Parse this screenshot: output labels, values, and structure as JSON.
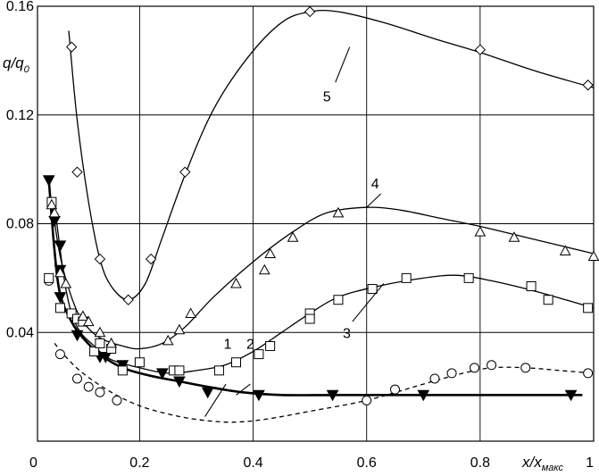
{
  "chart_data": {
    "type": "line",
    "title": "",
    "xlabel": {
      "base": "x/x",
      "sub": "макс"
    },
    "ylabel": {
      "base": "q/q",
      "sub": "0"
    },
    "xlim": [
      0.02,
      1.0
    ],
    "ylim": [
      0.0,
      0.16
    ],
    "grid": true,
    "x_ticks": [
      {
        "value": 0.2,
        "label": "0.2"
      },
      {
        "value": 0.4,
        "label": "0.4"
      },
      {
        "value": 0.6,
        "label": "0.6"
      },
      {
        "value": 0.8,
        "label": "0.8"
      },
      {
        "value": 1.0,
        "label": "1"
      }
    ],
    "y_ticks": [
      {
        "value": 0.04,
        "label": "0.04"
      },
      {
        "value": 0.08,
        "label": "0.08"
      },
      {
        "value": 0.12,
        "label": "0.12"
      },
      {
        "value": 0.16,
        "label": "0.16"
      }
    ],
    "origin_label": "0",
    "series": [
      {
        "label": "1",
        "marker": "circle",
        "line": "dashed",
        "label_pos": [
          0.355,
          0.036
        ],
        "leader": [
          [
            0.352,
            0.021
          ],
          [
            0.315,
            0.009
          ]
        ],
        "curve": [
          [
            0.05,
            0.036
          ],
          [
            0.07,
            0.031
          ],
          [
            0.1,
            0.025
          ],
          [
            0.15,
            0.018
          ],
          [
            0.2,
            0.013
          ],
          [
            0.25,
            0.01
          ],
          [
            0.3,
            0.008
          ],
          [
            0.36,
            0.007
          ],
          [
            0.42,
            0.008
          ],
          [
            0.5,
            0.011
          ],
          [
            0.6,
            0.015
          ],
          [
            0.7,
            0.021
          ],
          [
            0.77,
            0.025
          ],
          [
            0.82,
            0.027
          ],
          [
            0.88,
            0.027
          ],
          [
            0.94,
            0.026
          ],
          [
            1.0,
            0.025
          ]
        ],
        "points": [
          [
            0.04,
            0.059
          ],
          [
            0.06,
            0.032
          ],
          [
            0.09,
            0.023
          ],
          [
            0.11,
            0.02
          ],
          [
            0.13,
            0.018
          ],
          [
            0.16,
            0.015
          ],
          [
            0.6,
            0.015
          ],
          [
            0.65,
            0.019
          ],
          [
            0.72,
            0.023
          ],
          [
            0.75,
            0.025
          ],
          [
            0.79,
            0.027
          ],
          [
            0.82,
            0.028
          ],
          [
            0.88,
            0.027
          ],
          [
            0.99,
            0.025
          ]
        ]
      },
      {
        "label": "2",
        "marker": "triangle-down-filled",
        "line": "solid-thick",
        "label_pos": [
          0.395,
          0.036
        ],
        "leader": [
          [
            0.395,
            0.021
          ],
          [
            0.37,
            0.017
          ]
        ],
        "curve": [
          [
            0.04,
            0.096
          ],
          [
            0.05,
            0.07
          ],
          [
            0.06,
            0.054
          ],
          [
            0.08,
            0.044
          ],
          [
            0.1,
            0.038
          ],
          [
            0.13,
            0.032
          ],
          [
            0.17,
            0.027
          ],
          [
            0.22,
            0.024
          ],
          [
            0.27,
            0.022
          ],
          [
            0.32,
            0.02
          ],
          [
            0.38,
            0.018
          ],
          [
            0.45,
            0.017
          ],
          [
            0.55,
            0.017
          ],
          [
            0.7,
            0.017
          ],
          [
            0.85,
            0.017
          ],
          [
            0.98,
            0.017
          ]
        ],
        "points": [
          [
            0.04,
            0.096
          ],
          [
            0.05,
            0.081
          ],
          [
            0.06,
            0.072
          ],
          [
            0.06,
            0.063
          ],
          [
            0.06,
            0.053
          ],
          [
            0.09,
            0.039
          ],
          [
            0.13,
            0.031
          ],
          [
            0.14,
            0.031
          ],
          [
            0.17,
            0.028
          ],
          [
            0.24,
            0.025
          ],
          [
            0.27,
            0.022
          ],
          [
            0.32,
            0.018
          ],
          [
            0.41,
            0.017
          ],
          [
            0.54,
            0.017
          ],
          [
            0.7,
            0.017
          ],
          [
            0.96,
            0.017
          ]
        ]
      },
      {
        "label": "3",
        "marker": "square",
        "line": "solid",
        "label_pos": [
          0.565,
          0.04
        ],
        "leader": [
          [
            0.575,
            0.044
          ],
          [
            0.63,
            0.058
          ]
        ],
        "curve": [
          [
            0.05,
            0.087
          ],
          [
            0.07,
            0.056
          ],
          [
            0.09,
            0.042
          ],
          [
            0.12,
            0.035
          ],
          [
            0.15,
            0.03
          ],
          [
            0.2,
            0.027
          ],
          [
            0.25,
            0.025
          ],
          [
            0.3,
            0.026
          ],
          [
            0.35,
            0.028
          ],
          [
            0.4,
            0.033
          ],
          [
            0.45,
            0.04
          ],
          [
            0.5,
            0.047
          ],
          [
            0.55,
            0.053
          ],
          [
            0.62,
            0.057
          ],
          [
            0.7,
            0.06
          ],
          [
            0.76,
            0.061
          ],
          [
            0.82,
            0.059
          ],
          [
            0.9,
            0.055
          ],
          [
            1.0,
            0.049
          ]
        ],
        "points": [
          [
            0.045,
            0.088
          ],
          [
            0.04,
            0.06
          ],
          [
            0.06,
            0.049
          ],
          [
            0.08,
            0.047
          ],
          [
            0.09,
            0.045
          ],
          [
            0.1,
            0.044
          ],
          [
            0.12,
            0.033
          ],
          [
            0.13,
            0.036
          ],
          [
            0.15,
            0.034
          ],
          [
            0.17,
            0.026
          ],
          [
            0.2,
            0.029
          ],
          [
            0.26,
            0.026
          ],
          [
            0.27,
            0.026
          ],
          [
            0.34,
            0.026
          ],
          [
            0.37,
            0.029
          ],
          [
            0.41,
            0.032
          ],
          [
            0.43,
            0.035
          ],
          [
            0.5,
            0.047
          ],
          [
            0.5,
            0.045
          ],
          [
            0.55,
            0.052
          ],
          [
            0.61,
            0.056
          ],
          [
            0.67,
            0.06
          ],
          [
            0.78,
            0.06
          ],
          [
            0.89,
            0.057
          ],
          [
            0.92,
            0.052
          ],
          [
            0.99,
            0.049
          ]
        ]
      },
      {
        "label": "4",
        "marker": "triangle",
        "line": "solid",
        "label_pos": [
          0.615,
          0.095
        ],
        "leader": [
          [
            0.625,
            0.091
          ],
          [
            0.6,
            0.086
          ]
        ],
        "curve": [
          [
            0.045,
            0.088
          ],
          [
            0.06,
            0.068
          ],
          [
            0.08,
            0.053
          ],
          [
            0.1,
            0.044
          ],
          [
            0.13,
            0.038
          ],
          [
            0.17,
            0.035
          ],
          [
            0.2,
            0.034
          ],
          [
            0.24,
            0.036
          ],
          [
            0.28,
            0.042
          ],
          [
            0.33,
            0.053
          ],
          [
            0.4,
            0.066
          ],
          [
            0.47,
            0.077
          ],
          [
            0.53,
            0.084
          ],
          [
            0.6,
            0.086
          ],
          [
            0.66,
            0.085
          ],
          [
            0.73,
            0.082
          ],
          [
            0.8,
            0.079
          ],
          [
            0.9,
            0.074
          ],
          [
            1.0,
            0.069
          ]
        ],
        "points": [
          [
            0.045,
            0.087
          ],
          [
            0.05,
            0.084
          ],
          [
            0.06,
            0.062
          ],
          [
            0.07,
            0.058
          ],
          [
            0.1,
            0.046
          ],
          [
            0.11,
            0.044
          ],
          [
            0.13,
            0.04
          ],
          [
            0.15,
            0.036
          ],
          [
            0.25,
            0.037
          ],
          [
            0.27,
            0.041
          ],
          [
            0.29,
            0.047
          ],
          [
            0.37,
            0.058
          ],
          [
            0.42,
            0.063
          ],
          [
            0.43,
            0.069
          ],
          [
            0.47,
            0.075
          ],
          [
            0.55,
            0.084
          ],
          [
            0.8,
            0.077
          ],
          [
            0.86,
            0.075
          ],
          [
            0.95,
            0.07
          ],
          [
            1.0,
            0.068
          ]
        ]
      },
      {
        "label": "5",
        "marker": "diamond",
        "line": "solid",
        "label_pos": [
          0.53,
          0.127
        ],
        "leader": [
          [
            0.545,
            0.132
          ],
          [
            0.57,
            0.145
          ]
        ],
        "curve": [
          [
            0.075,
            0.151
          ],
          [
            0.09,
            0.118
          ],
          [
            0.11,
            0.088
          ],
          [
            0.13,
            0.067
          ],
          [
            0.15,
            0.057
          ],
          [
            0.18,
            0.052
          ],
          [
            0.21,
            0.058
          ],
          [
            0.24,
            0.075
          ],
          [
            0.28,
            0.098
          ],
          [
            0.33,
            0.122
          ],
          [
            0.39,
            0.141
          ],
          [
            0.45,
            0.154
          ],
          [
            0.5,
            0.158
          ],
          [
            0.55,
            0.158
          ],
          [
            0.63,
            0.154
          ],
          [
            0.72,
            0.148
          ],
          [
            0.8,
            0.143
          ],
          [
            0.9,
            0.136
          ],
          [
            1.0,
            0.13
          ]
        ],
        "points": [
          [
            0.08,
            0.145
          ],
          [
            0.09,
            0.099
          ],
          [
            0.13,
            0.067
          ],
          [
            0.18,
            0.052
          ],
          [
            0.22,
            0.067
          ],
          [
            0.28,
            0.099
          ],
          [
            0.5,
            0.158
          ],
          [
            0.8,
            0.144
          ],
          [
            0.99,
            0.131
          ]
        ]
      }
    ]
  }
}
